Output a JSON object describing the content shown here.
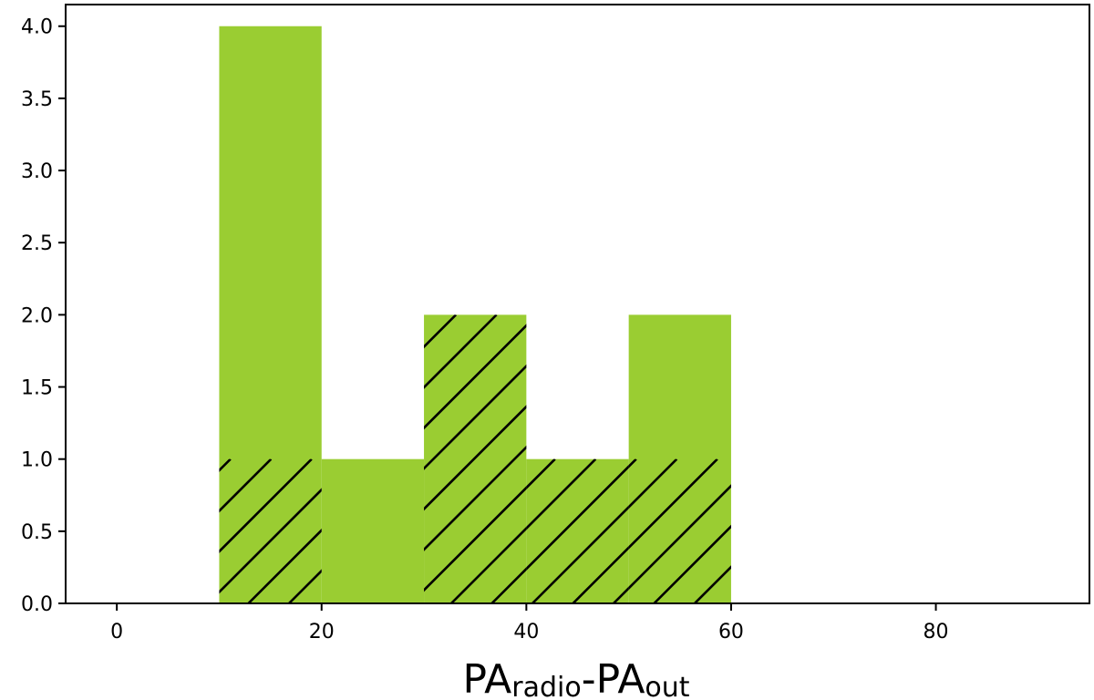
{
  "chart_data": {
    "type": "bar",
    "title": "",
    "xlabel": "PA",
    "xlabel_sub_1": "radio",
    "xlabel_mid": "-PA",
    "xlabel_sub_2": "out",
    "ylabel": "",
    "xlim": [
      -5,
      95
    ],
    "ylim": [
      0,
      4.15
    ],
    "xticks": [
      0,
      20,
      40,
      60,
      80
    ],
    "xtick_labels": [
      "0",
      "20",
      "40",
      "60",
      "80"
    ],
    "yticks": [
      0.0,
      0.5,
      1.0,
      1.5,
      2.0,
      2.5,
      3.0,
      3.5,
      4.0
    ],
    "ytick_labels": [
      "0.0",
      "0.5",
      "1.0",
      "1.5",
      "2.0",
      "2.5",
      "3.0",
      "3.5",
      "4.0"
    ],
    "bin_edges": [
      10,
      20,
      30,
      40,
      50,
      60
    ],
    "series": [
      {
        "style": "solid",
        "color": "#9acd32",
        "values": [
          4,
          1,
          2,
          1,
          2
        ]
      },
      {
        "style": "hatched",
        "color": "#000000",
        "values": [
          1,
          0,
          2,
          1,
          1
        ]
      }
    ],
    "grid": false
  }
}
